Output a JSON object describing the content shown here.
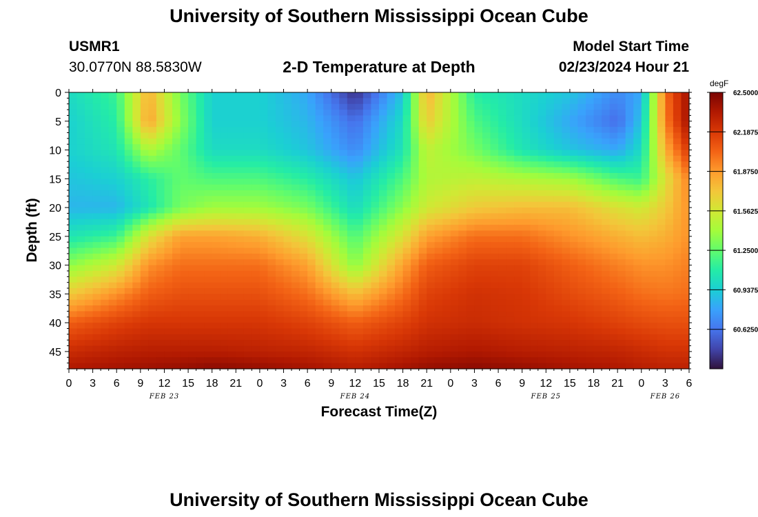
{
  "page": {
    "title": "University of Southern Mississippi Ocean Cube",
    "footer_title": "University of Southern Mississippi Ocean Cube",
    "station": "USMR1",
    "coords": "30.0770N  88.5830W",
    "subtitle": "2-D Temperature at Depth",
    "model_start_label": "Model Start Time",
    "model_start_value": "02/23/2024 Hour 21"
  },
  "chart_data": {
    "type": "heatmap",
    "title": "2-D Temperature at Depth",
    "xlabel": "Forecast Time(Z)",
    "ylabel": "Depth (ft)",
    "unit": "degF",
    "x_tick_labels": [
      "0",
      "3",
      "6",
      "9",
      "12",
      "15",
      "18",
      "21",
      "0",
      "3",
      "6",
      "9",
      "12",
      "15",
      "18",
      "21",
      "0",
      "3",
      "6",
      "9",
      "12",
      "15",
      "18",
      "21",
      "0",
      "3",
      "6"
    ],
    "day_labels": [
      {
        "label": "FEB 23",
        "hour": 12
      },
      {
        "label": "FEB 24",
        "hour": 36
      },
      {
        "label": "FEB 25",
        "hour": 60
      },
      {
        "label": "FEB 26",
        "hour": 75
      }
    ],
    "x_range_hours": [
      0,
      78
    ],
    "y_ticks": [
      0,
      5,
      10,
      15,
      20,
      25,
      30,
      35,
      40,
      45
    ],
    "y_range": [
      0,
      48
    ],
    "colorbar": {
      "min": 60.3125,
      "max": 62.5,
      "labels": [
        "62.5000",
        "62.1875",
        "61.8750",
        "61.5625",
        "61.2500",
        "60.9375",
        "60.6250"
      ],
      "values": [
        62.5,
        62.1875,
        61.875,
        61.5625,
        61.25,
        60.9375,
        60.625
      ]
    },
    "grid": false,
    "depths": [
      0,
      5,
      10,
      15,
      20,
      25,
      30,
      35,
      40,
      45,
      48
    ],
    "hours": [
      0,
      6,
      10,
      14,
      18,
      24,
      30,
      36,
      42,
      45,
      51,
      57,
      63,
      69,
      72,
      75,
      78
    ],
    "values": [
      [
        61.0,
        61.15,
        61.8,
        61.3,
        60.95,
        60.95,
        60.8,
        60.4,
        60.9,
        61.8,
        61.1,
        61.0,
        60.9,
        60.7,
        60.8,
        62.0,
        62.4
      ],
      [
        60.95,
        61.1,
        61.85,
        61.35,
        60.95,
        60.95,
        60.85,
        60.6,
        61.0,
        61.7,
        61.2,
        61.0,
        60.8,
        60.6,
        60.9,
        61.95,
        62.4
      ],
      [
        60.95,
        61.05,
        61.45,
        61.25,
        61.0,
        61.0,
        60.9,
        60.7,
        61.05,
        61.5,
        61.3,
        61.05,
        60.9,
        60.8,
        61.0,
        61.8,
        62.2
      ],
      [
        60.9,
        60.95,
        61.1,
        61.25,
        61.2,
        61.2,
        61.1,
        60.9,
        61.2,
        61.45,
        61.5,
        61.45,
        61.4,
        61.2,
        61.15,
        61.6,
        61.95
      ],
      [
        60.85,
        60.85,
        61.05,
        61.3,
        61.4,
        61.4,
        61.3,
        61.0,
        61.35,
        61.55,
        61.7,
        61.75,
        61.75,
        61.6,
        61.55,
        61.7,
        61.9
      ],
      [
        61.05,
        61.15,
        61.6,
        61.85,
        61.85,
        61.8,
        61.6,
        61.2,
        61.6,
        61.85,
        62.0,
        62.0,
        61.9,
        61.8,
        61.75,
        61.8,
        61.9
      ],
      [
        61.35,
        61.55,
        61.9,
        62.0,
        62.0,
        62.0,
        61.85,
        61.35,
        61.85,
        62.05,
        62.15,
        62.15,
        62.05,
        61.95,
        61.9,
        61.9,
        61.95
      ],
      [
        61.7,
        61.9,
        62.05,
        62.1,
        62.1,
        62.1,
        62.0,
        61.75,
        62.0,
        62.15,
        62.22,
        62.2,
        62.12,
        62.05,
        62.0,
        61.98,
        62.0
      ],
      [
        62.05,
        62.15,
        62.2,
        62.2,
        62.2,
        62.2,
        62.15,
        62.05,
        62.15,
        62.22,
        62.25,
        62.22,
        62.2,
        62.15,
        62.12,
        62.1,
        62.1
      ],
      [
        62.25,
        62.3,
        62.32,
        62.32,
        62.32,
        62.3,
        62.28,
        62.22,
        62.28,
        62.32,
        62.35,
        62.32,
        62.3,
        62.28,
        62.25,
        62.22,
        62.22
      ],
      [
        62.35,
        62.38,
        62.4,
        62.42,
        62.45,
        62.42,
        62.38,
        62.32,
        62.38,
        62.42,
        62.45,
        62.42,
        62.38,
        62.35,
        62.32,
        62.3,
        62.3
      ]
    ]
  },
  "colors": {
    "background": "#ffffff",
    "colormap": [
      "#30123b",
      "#4145ab",
      "#4675ed",
      "#39a2fc",
      "#1bcfd4",
      "#24eca6",
      "#61fc6c",
      "#a4fc3b",
      "#d1e834",
      "#f3c63a",
      "#fe9b2d",
      "#f36315",
      "#d93806",
      "#b11901",
      "#7a0402"
    ]
  }
}
